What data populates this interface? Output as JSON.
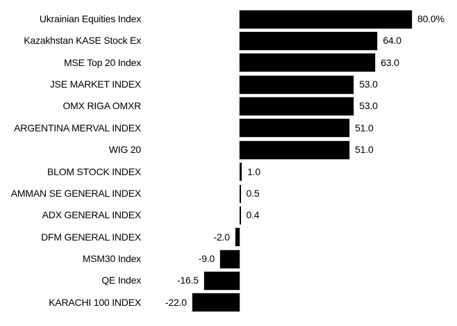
{
  "chart_data": {
    "type": "bar",
    "orientation": "horizontal",
    "title": "",
    "xlabel": "",
    "ylabel": "",
    "unit": "%",
    "grid": false,
    "legend": "none",
    "axis_lines": "none",
    "value_labels_at_bar_ends": true,
    "categories": [
      "Ukrainian Equities Index",
      "Kazakhstan KASE Stock Ex",
      "MSE Top 20 Index",
      "JSE MARKET INDEX",
      "OMX RIGA OMXR",
      "ARGENTINA MERVAL INDEX",
      "WIG 20",
      "BLOM STOCK INDEX",
      "AMMAN SE GENERAL INDEX",
      "ADX GENERAL INDEX",
      "DFM GENERAL INDEX",
      "MSM30 Index",
      "QE Index",
      "KARACHI 100 INDEX"
    ],
    "values": [
      80.0,
      64.0,
      63.0,
      53.0,
      53.0,
      51.0,
      51.0,
      1.0,
      0.5,
      0.4,
      -2.0,
      -9.0,
      -16.5,
      -22.0
    ],
    "value_labels": [
      "80.0%",
      "64.0",
      "63.0",
      "53.0",
      "53.0",
      "51.0",
      "51.0",
      "1.0",
      "0.5",
      "0.4",
      "-2.0",
      "-9.0",
      "-16.5",
      "-22.0"
    ],
    "colors": {
      "bar": "#000000",
      "bar_outline": "#cccccc",
      "text": "#000000",
      "background": "#ffffff"
    }
  }
}
